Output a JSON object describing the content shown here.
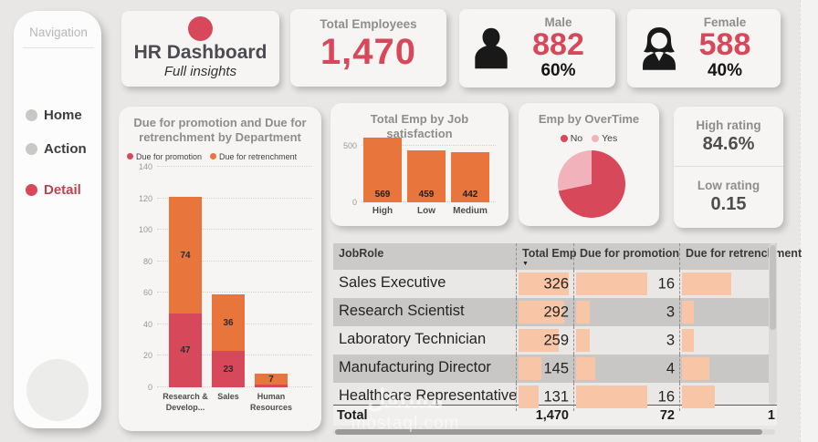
{
  "colors": {
    "accent_red": "#d7495a",
    "accent_orange": "#e8763c",
    "table_bar_salmon": "#f8c5a7",
    "pie_yes_pink": "#f1b2bc",
    "title_gray": "#8e8d8c",
    "page_bg": "#e8e7e6"
  },
  "sidebar": {
    "title": "Navigation",
    "items": [
      {
        "label": "Home",
        "active": false
      },
      {
        "label": "Action",
        "active": false
      },
      {
        "label": "Detail",
        "active": true
      }
    ]
  },
  "header": {
    "brand": {
      "title": "HR Dashboard",
      "subtitle": "Full insights"
    },
    "total_card": {
      "label": "Total Employees",
      "value": "1,470"
    },
    "male_card": {
      "label": "Male",
      "value": "882",
      "percent": "60%"
    },
    "female_card": {
      "label": "Female",
      "value": "588",
      "percent": "40%"
    }
  },
  "rating_card": {
    "high_label": "High rating",
    "high_value": "84.6%",
    "low_label": "Low rating",
    "low_value": "0.15"
  },
  "watermark": {
    "arabic": "مستقل",
    "latin": "mostaql.com"
  },
  "chart_data": [
    {
      "id": "promo-retrench-by-department",
      "type": "bar",
      "stacked": true,
      "title": "Due for promotion and Due for retrenchment by Department",
      "categories": [
        "Research & Develop...",
        "Sales",
        "Human Resources"
      ],
      "series": [
        {
          "name": "Due for promotion",
          "color": "#d7495a",
          "values": [
            47,
            23,
            2
          ],
          "labels": [
            "47",
            "23",
            ""
          ]
        },
        {
          "name": "Due for retrenchment",
          "color": "#e8763c",
          "values": [
            74,
            36,
            7
          ],
          "labels": [
            "74",
            "36",
            "7"
          ]
        }
      ],
      "ylim": [
        0,
        140
      ],
      "yticks": [
        0,
        20,
        40,
        60,
        80,
        100,
        120,
        140
      ],
      "grid": "dotted",
      "legend_position": "top"
    },
    {
      "id": "emp-by-job-satisfaction",
      "type": "bar",
      "title": "Total Emp by Job satisfaction",
      "categories": [
        "High",
        "Low",
        "Medium"
      ],
      "values": [
        569,
        459,
        442
      ],
      "labels": [
        "569",
        "459",
        "442"
      ],
      "color": "#e8763c",
      "ylim": [
        0,
        590
      ],
      "yticks": [
        0,
        500
      ],
      "grid": "dotted"
    },
    {
      "id": "emp-by-overtime",
      "type": "pie",
      "title": "Emp by OverTime",
      "slices": [
        {
          "name": "No",
          "color": "#d7495a",
          "fraction": 0.717
        },
        {
          "name": "Yes",
          "color": "#f1b2bc",
          "fraction": 0.283
        }
      ],
      "legend_position": "top"
    },
    {
      "id": "jobrole-table",
      "type": "table",
      "columns": [
        "JobRole",
        "Total Emp",
        "Due for promotion",
        "Due for retrenchment"
      ],
      "sorted_by": "Total Emp",
      "sort_glyph": "▼",
      "rows": [
        {
          "job_role": "Sales Executive",
          "total_emp": "326",
          "promotion": "16",
          "bars": {
            "total": 1.0,
            "promotion": 0.72,
            "retrench": 0.41
          }
        },
        {
          "job_role": "Research Scientist",
          "total_emp": "292",
          "promotion": "3",
          "bars": {
            "total": 0.9,
            "promotion": 0.14,
            "retrench": 0.1
          }
        },
        {
          "job_role": "Laboratory Technician",
          "total_emp": "259",
          "promotion": "3",
          "bars": {
            "total": 0.8,
            "promotion": 0.14,
            "retrench": 0.1
          }
        },
        {
          "job_role": "Manufacturing Director",
          "total_emp": "145",
          "promotion": "4",
          "bars": {
            "total": 0.45,
            "promotion": 0.19,
            "retrench": 0.23
          }
        },
        {
          "job_role": "Healthcare Representative",
          "total_emp": "131",
          "promotion": "16",
          "bars": {
            "total": 0.4,
            "promotion": 0.72,
            "retrench": 0.27
          }
        }
      ],
      "total_row": {
        "label": "Total",
        "total_emp": "1,470",
        "promotion": "72",
        "retrenchment_truncated": "1"
      }
    }
  ]
}
